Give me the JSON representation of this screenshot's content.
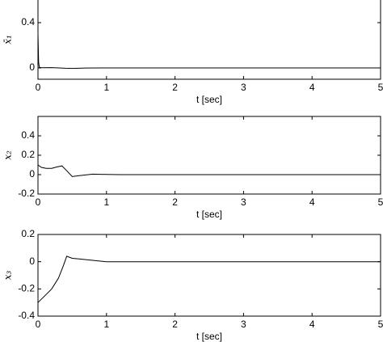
{
  "chart_data": [
    {
      "type": "line",
      "xlabel": "t [sec]",
      "ylabel": "x̄₁",
      "xlim": [
        0,
        5
      ],
      "ylim": [
        -0.1,
        0.8
      ],
      "xticks": [
        0,
        1,
        2,
        3,
        4,
        5
      ],
      "yticks": [
        0,
        0.4
      ],
      "series": [
        {
          "color": "#000000",
          "x": [
            0,
            0.01,
            0.02,
            0.05,
            0.2,
            0.4,
            0.5,
            0.7,
            1,
            5
          ],
          "values": [
            0.3,
            0.05,
            0.005,
            0.002,
            0.003,
            -0.003,
            -0.004,
            -0.001,
            0,
            0
          ]
        }
      ]
    },
    {
      "type": "line",
      "xlabel": "t [sec]",
      "ylabel": "x₂",
      "xlim": [
        0,
        5
      ],
      "ylim": [
        -0.2,
        0.6
      ],
      "xticks": [
        0,
        1,
        2,
        3,
        4,
        5
      ],
      "yticks": [
        -0.2,
        0,
        0.2,
        0.4
      ],
      "series": [
        {
          "color": "#000000",
          "x": [
            0,
            0.05,
            0.12,
            0.2,
            0.28,
            0.35,
            0.42,
            0.5,
            0.6,
            0.8,
            1,
            1.2,
            5
          ],
          "values": [
            0.1,
            0.075,
            0.065,
            0.065,
            0.08,
            0.09,
            0.04,
            -0.02,
            -0.01,
            0.005,
            0.002,
            0,
            0
          ]
        }
      ]
    },
    {
      "type": "line",
      "xlabel": "t [sec]",
      "ylabel": "x₃",
      "xlim": [
        0,
        5
      ],
      "ylim": [
        -0.4,
        0.2
      ],
      "xticks": [
        0,
        1,
        2,
        3,
        4,
        5
      ],
      "yticks": [
        -0.4,
        -0.2,
        0,
        0.2
      ],
      "series": [
        {
          "color": "#000000",
          "x": [
            0,
            0.1,
            0.2,
            0.3,
            0.37,
            0.42,
            0.5,
            0.6,
            0.8,
            1,
            1.2,
            5
          ],
          "values": [
            -0.3,
            -0.25,
            -0.2,
            -0.12,
            -0.03,
            0.04,
            0.025,
            0.02,
            0.01,
            0,
            0,
            0
          ]
        }
      ]
    }
  ]
}
